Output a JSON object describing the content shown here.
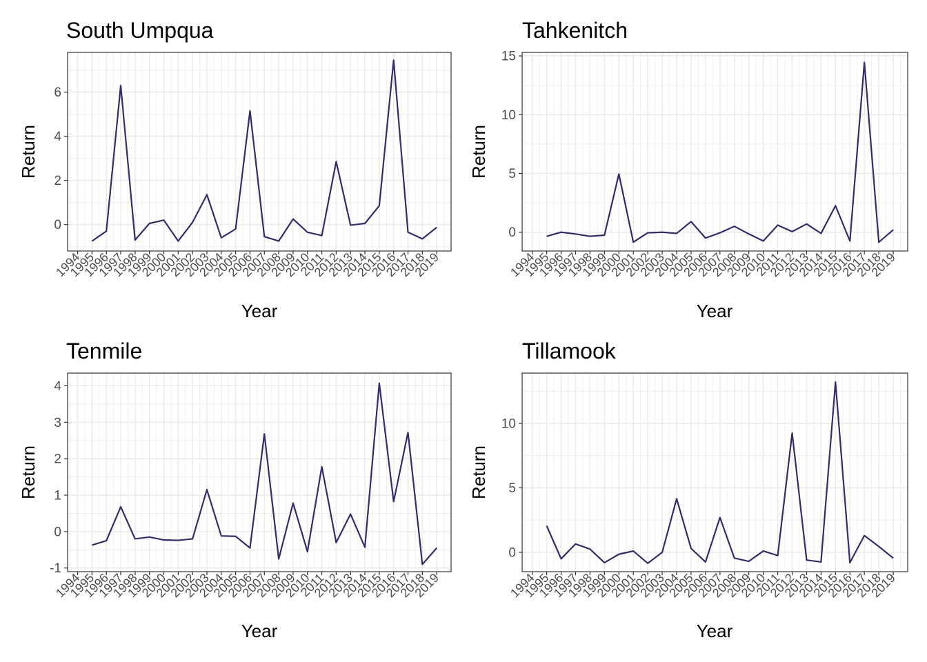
{
  "line_color": "#352a6e",
  "grid_color": "#ebebeb",
  "panel_border_color": "#333333",
  "chart_data": [
    {
      "type": "line",
      "title": "South Umpqua",
      "xlabel": "Year",
      "ylabel": "Return",
      "x_tick_labels": [
        "1994",
        "1995",
        "1996",
        "1997",
        "1998",
        "1999",
        "2000",
        "2001",
        "2002",
        "2003",
        "2004",
        "2005",
        "2006",
        "2007",
        "2008",
        "2009",
        "2010",
        "2011",
        "2012",
        "2013",
        "2014",
        "2015",
        "2016",
        "2017",
        "2018",
        "2019"
      ],
      "y_ticks": [
        "0",
        "2",
        "4",
        "6"
      ],
      "ylim": [
        -1.2,
        7.8
      ],
      "x": [
        1995,
        1996,
        1997,
        1998,
        1999,
        2000,
        2001,
        2002,
        2003,
        2004,
        2005,
        2006,
        2007,
        2008,
        2009,
        2010,
        2011,
        2012,
        2013,
        2014,
        2015,
        2016,
        2017,
        2018,
        2019
      ],
      "values": [
        -0.75,
        -0.3,
        6.3,
        -0.7,
        0.05,
        0.2,
        -0.75,
        0.1,
        1.35,
        -0.6,
        -0.2,
        5.15,
        -0.55,
        -0.75,
        0.25,
        -0.35,
        -0.5,
        2.85,
        -0.03,
        0.05,
        0.85,
        7.45,
        -0.35,
        -0.65,
        -0.13
      ]
    },
    {
      "type": "line",
      "title": "Tahkenitch",
      "xlabel": "Year",
      "ylabel": "Return",
      "x_tick_labels": [
        "1994",
        "1995",
        "1996",
        "1997",
        "1998",
        "1999",
        "2000",
        "2001",
        "2002",
        "2003",
        "2004",
        "2005",
        "2006",
        "2007",
        "2008",
        "2009",
        "2010",
        "2011",
        "2012",
        "2013",
        "2014",
        "2015",
        "2016",
        "2017",
        "2018",
        "2019"
      ],
      "y_ticks": [
        "0",
        "5",
        "10",
        "15"
      ],
      "ylim": [
        -1.6,
        15.3
      ],
      "x": [
        1995,
        1996,
        1997,
        1998,
        1999,
        2000,
        2001,
        2002,
        2003,
        2004,
        2005,
        2006,
        2007,
        2008,
        2009,
        2010,
        2011,
        2012,
        2013,
        2014,
        2015,
        2016,
        2017,
        2018,
        2019
      ],
      "values": [
        -0.35,
        0.0,
        -0.15,
        -0.35,
        -0.25,
        4.95,
        -0.85,
        -0.05,
        0.0,
        -0.1,
        0.9,
        -0.5,
        -0.05,
        0.5,
        -0.15,
        -0.75,
        0.6,
        0.05,
        0.7,
        -0.1,
        2.25,
        -0.75,
        14.45,
        -0.85,
        0.2
      ]
    },
    {
      "type": "line",
      "title": "Tenmile",
      "xlabel": "Year",
      "ylabel": "Return",
      "x_tick_labels": [
        "1994",
        "1995",
        "1996",
        "1997",
        "1998",
        "1999",
        "2000",
        "2001",
        "2002",
        "2003",
        "2004",
        "2005",
        "2006",
        "2007",
        "2008",
        "2009",
        "2010",
        "2011",
        "2012",
        "2013",
        "2014",
        "2015",
        "2016",
        "2017",
        "2018",
        "2019"
      ],
      "y_ticks": [
        "-1",
        "0",
        "1",
        "2",
        "3",
        "4"
      ],
      "ylim": [
        -1.1,
        4.35
      ],
      "x": [
        1995,
        1996,
        1997,
        1998,
        1999,
        2000,
        2001,
        2002,
        2003,
        2004,
        2005,
        2006,
        2007,
        2008,
        2009,
        2010,
        2011,
        2012,
        2013,
        2014,
        2015,
        2016,
        2017,
        2018,
        2019
      ],
      "values": [
        -0.37,
        -0.25,
        0.68,
        -0.2,
        -0.15,
        -0.23,
        -0.24,
        -0.2,
        1.15,
        -0.12,
        -0.13,
        -0.45,
        2.68,
        -0.75,
        0.78,
        -0.55,
        1.78,
        -0.3,
        0.48,
        -0.43,
        4.07,
        0.82,
        2.72,
        -0.9,
        -0.45
      ]
    },
    {
      "type": "line",
      "title": "Tillamook",
      "xlabel": "Year",
      "ylabel": "Return",
      "x_tick_labels": [
        "1994",
        "1995",
        "1996",
        "1997",
        "1998",
        "1999",
        "2000",
        "2001",
        "2002",
        "2003",
        "2004",
        "2005",
        "2006",
        "2007",
        "2008",
        "2009",
        "2010",
        "2011",
        "2012",
        "2013",
        "2014",
        "2015",
        "2016",
        "2017",
        "2018",
        "2019"
      ],
      "y_ticks": [
        "0",
        "5",
        "10"
      ],
      "ylim": [
        -1.5,
        13.9
      ],
      "x": [
        1995,
        1996,
        1997,
        1998,
        1999,
        2000,
        2001,
        2002,
        2003,
        2004,
        2005,
        2006,
        2007,
        2008,
        2009,
        2010,
        2011,
        2012,
        2013,
        2014,
        2015,
        2016,
        2017,
        2018,
        2019
      ],
      "values": [
        2.05,
        -0.5,
        0.65,
        0.25,
        -0.8,
        -0.15,
        0.1,
        -0.85,
        0.0,
        4.15,
        0.3,
        -0.75,
        2.7,
        -0.45,
        -0.7,
        0.1,
        -0.25,
        9.25,
        -0.6,
        -0.75,
        13.2,
        -0.8,
        1.3,
        0.45,
        -0.45
      ]
    }
  ]
}
